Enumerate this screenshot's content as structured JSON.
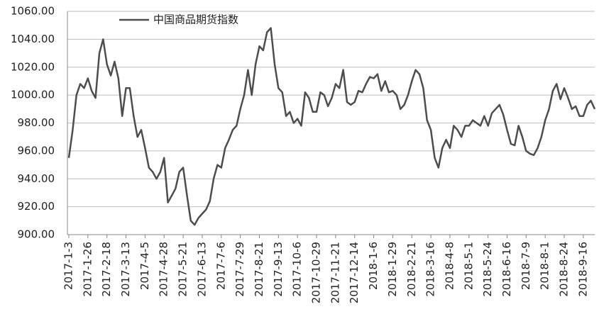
{
  "chart_data": {
    "type": "line",
    "categories": [
      "2017-1-3",
      null,
      null,
      null,
      null,
      "2017-1-26",
      null,
      null,
      null,
      null,
      "2017-2-18",
      null,
      null,
      null,
      null,
      "2017-3-13",
      null,
      null,
      null,
      null,
      "2017-4-5",
      null,
      null,
      null,
      null,
      "2017-4-28",
      null,
      null,
      null,
      null,
      "2017-5-21",
      null,
      null,
      null,
      null,
      "2017-6-13",
      null,
      null,
      null,
      null,
      "2017-7-6",
      null,
      null,
      null,
      null,
      "2017-7-29",
      null,
      null,
      null,
      null,
      "2017-8-21",
      null,
      null,
      null,
      null,
      "2017-9-13",
      null,
      null,
      null,
      null,
      "2017-10-6",
      null,
      null,
      null,
      null,
      "2017-10-29",
      null,
      null,
      null,
      null,
      "2017-11-21",
      null,
      null,
      null,
      null,
      "2017-12-14",
      null,
      null,
      null,
      null,
      "2018-1-6",
      null,
      null,
      null,
      null,
      "2018-1-29",
      null,
      null,
      null,
      null,
      "2018-2-21",
      null,
      null,
      null,
      null,
      "2018-3-16",
      null,
      null,
      null,
      null,
      "2018-4-8",
      null,
      null,
      null,
      null,
      "2018-5-1",
      null,
      null,
      null,
      null,
      "2018-5-24",
      null,
      null,
      null,
      null,
      "2018-6-16",
      null,
      null,
      null,
      null,
      "2018-7-9",
      null,
      null,
      null,
      null,
      "2018-8-1",
      null,
      null,
      null,
      null,
      "2018-8-24",
      null,
      null,
      null,
      null,
      "2018-9-16",
      null,
      null,
      null
    ],
    "series": [
      {
        "name": "中国商品期货指数",
        "color": "#4d4d4d",
        "values": [
          955,
          975,
          1000,
          1008,
          1005,
          1012,
          1003,
          998,
          1030,
          1040,
          1022,
          1014,
          1024,
          1012,
          985,
          1005,
          1005,
          985,
          970,
          975,
          962,
          948,
          945,
          940,
          945,
          955,
          923,
          928,
          933,
          945,
          948,
          928,
          910,
          907,
          912,
          915,
          918,
          924,
          940,
          950,
          948,
          962,
          968,
          975,
          978,
          990,
          1000,
          1018,
          1000,
          1022,
          1035,
          1032,
          1045,
          1048,
          1022,
          1005,
          1002,
          985,
          988,
          980,
          983,
          978,
          1002,
          998,
          988,
          988,
          1002,
          1000,
          992,
          998,
          1008,
          1005,
          1018,
          995,
          993,
          995,
          1003,
          1002,
          1008,
          1013,
          1012,
          1015,
          1003,
          1010,
          1002,
          1003,
          1000,
          990,
          993,
          1000,
          1010,
          1018,
          1015,
          1005,
          982,
          975,
          955,
          948,
          962,
          968,
          962,
          978,
          975,
          970,
          978,
          978,
          982,
          980,
          978,
          985,
          978,
          987,
          990,
          993,
          986,
          975,
          965,
          964,
          978,
          970,
          960,
          958,
          957,
          962,
          970,
          982,
          990,
          1003,
          1008,
          997,
          1005,
          998,
          990,
          992,
          985,
          985,
          993,
          996,
          990
        ]
      }
    ],
    "ylim": [
      900,
      1060
    ],
    "yticks": [
      {
        "value": 900,
        "label": "900.00"
      },
      {
        "value": 920,
        "label": "920.00"
      },
      {
        "value": 940,
        "label": "940.00"
      },
      {
        "value": 960,
        "label": "960.00"
      },
      {
        "value": 980,
        "label": "980.00"
      },
      {
        "value": 1000,
        "label": "1000.00"
      },
      {
        "value": 1020,
        "label": "1020.00"
      },
      {
        "value": 1040,
        "label": "1040.00"
      },
      {
        "value": 1060,
        "label": "1060.00"
      }
    ],
    "grid": true,
    "legend": "top-left"
  }
}
